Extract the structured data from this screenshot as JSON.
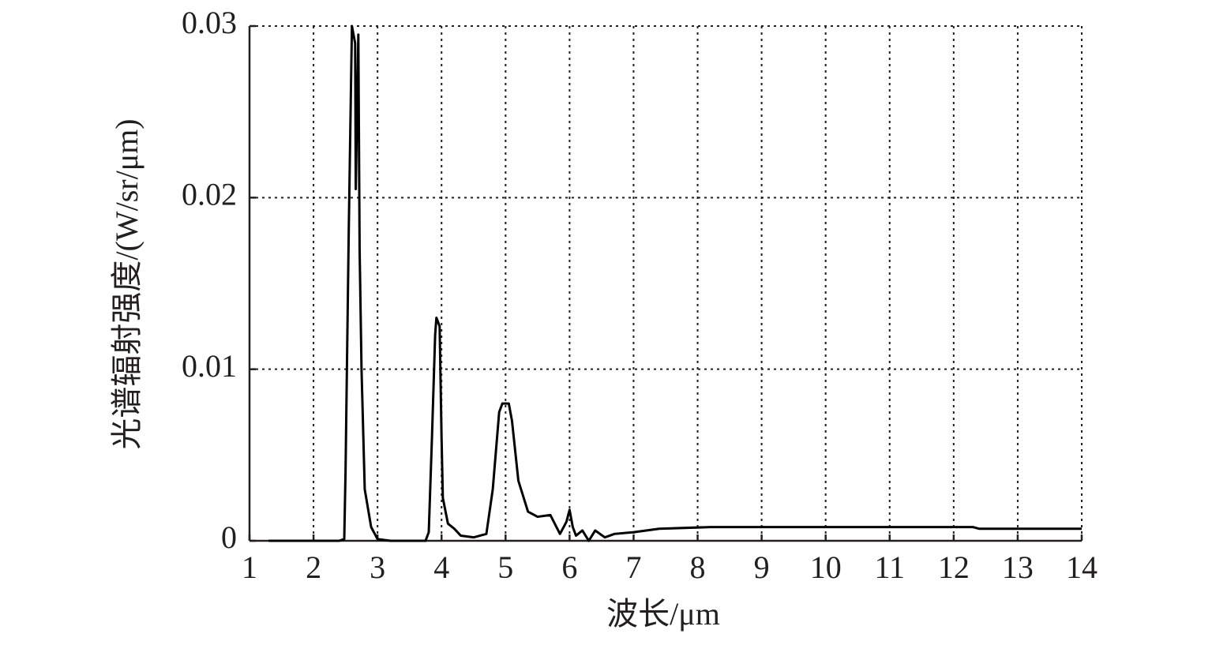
{
  "chart_data": {
    "type": "line",
    "x_label": "波长/μm",
    "y_label": "光谱辐射强度/(W/sr/μm)",
    "x": [
      1.3,
      1.35,
      1.5,
      2.4,
      2.48,
      2.5,
      2.55,
      2.6,
      2.65,
      2.66,
      2.7,
      2.72,
      2.75,
      2.8,
      2.9,
      3.0,
      3.2,
      3.75,
      3.8,
      3.85,
      3.9,
      3.92,
      3.97,
      4.0,
      4.02,
      4.1,
      4.2,
      4.3,
      4.5,
      4.7,
      4.8,
      4.9,
      4.95,
      5.05,
      5.1,
      5.2,
      5.35,
      5.5,
      5.7,
      5.85,
      5.95,
      6.0,
      6.05,
      6.1,
      6.2,
      6.3,
      6.4,
      6.55,
      6.7,
      7.0,
      7.4,
      8.2,
      12.3,
      12.4,
      14
    ],
    "values": [
      0,
      0,
      0,
      0,
      0.0001,
      0.004,
      0.018,
      0.03,
      0.029,
      0.0205,
      0.0295,
      0.017,
      0.01,
      0.003,
      0.0008,
      0.0001,
      0,
      0,
      0.0005,
      0.006,
      0.012,
      0.013,
      0.0125,
      0.006,
      0.0025,
      0.001,
      0.0007,
      0.0003,
      0.0002,
      0.0004,
      0.003,
      0.0075,
      0.008,
      0.008,
      0.007,
      0.0035,
      0.0017,
      0.0014,
      0.0015,
      0.0004,
      0.0011,
      0.0018,
      0.0008,
      0.0003,
      0.0006,
      0,
      0.0006,
      0.0002,
      0.0004,
      0.0005,
      0.0007,
      0.0008,
      0.0008,
      0.0007,
      0.0007
    ],
    "color": "#000000",
    "xlim": [
      1,
      14
    ],
    "xticks": [
      1,
      2,
      3,
      4,
      5,
      6,
      7,
      8,
      9,
      10,
      11,
      12,
      13,
      14
    ],
    "ylim": [
      0,
      0.03
    ],
    "yticks": [
      0,
      0.01,
      0.02,
      0.03
    ],
    "grid": true
  }
}
